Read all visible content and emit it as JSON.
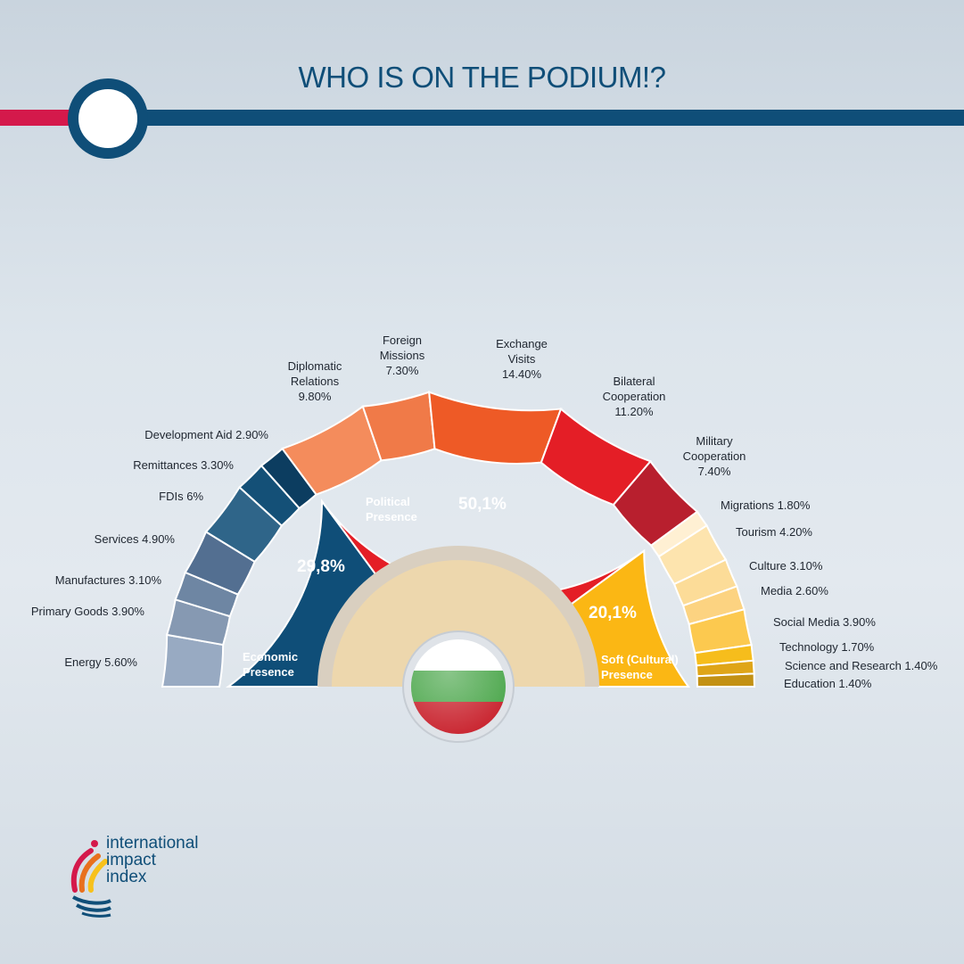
{
  "title": "WHO IS ON THE PODIUM!?",
  "logo": {
    "lines": [
      "international",
      "impact",
      "index"
    ]
  },
  "center_flag": {
    "name": "Bulgaria",
    "colors": [
      "#ffffff",
      "#4aa64a",
      "#c8202b"
    ]
  },
  "chart_data": {
    "type": "pie",
    "subtype": "semicircle-sunburst",
    "inner": [
      {
        "name_lines": [
          "Economic",
          "Presence"
        ],
        "value_label": "29,8%",
        "value": 29.8,
        "color": "#0f4e78"
      },
      {
        "name_lines": [
          "Political",
          "Presence"
        ],
        "value_label": "50,1%",
        "value": 50.1,
        "color": "#e41e26"
      },
      {
        "name_lines": [
          "Soft (Cultural)",
          "Presence"
        ],
        "value_label": "20,1%",
        "value": 20.1,
        "color": "#fbb714"
      }
    ],
    "outer": [
      {
        "label_lines": [
          "Energy 5.60%"
        ],
        "value": 5.6,
        "group": "Economic",
        "color": "#98aac2"
      },
      {
        "label_lines": [
          "Primary Goods 3.90%"
        ],
        "value": 3.9,
        "group": "Economic",
        "color": "#8699b2"
      },
      {
        "label_lines": [
          "Manufactures 3.10%"
        ],
        "value": 3.1,
        "group": "Economic",
        "color": "#6e86a3"
      },
      {
        "label_lines": [
          "Services 4.90%"
        ],
        "value": 4.9,
        "group": "Economic",
        "color": "#536f91"
      },
      {
        "label_lines": [
          "FDIs 6%"
        ],
        "value": 6.0,
        "group": "Economic",
        "color": "#2f6589"
      },
      {
        "label_lines": [
          "Remittances 3.30%"
        ],
        "value": 3.3,
        "group": "Economic",
        "color": "#145077"
      },
      {
        "label_lines": [
          "Development Aid 2.90%"
        ],
        "value": 2.9,
        "group": "Economic",
        "color": "#0c3d60"
      },
      {
        "label_lines": [
          "Diplomatic",
          "Relations",
          "9.80%"
        ],
        "value": 9.8,
        "group": "Political",
        "color": "#f48c5c"
      },
      {
        "label_lines": [
          "Foreign",
          "Missions",
          "7.30%"
        ],
        "value": 7.3,
        "group": "Political",
        "color": "#f07a48"
      },
      {
        "label_lines": [
          "Exchange",
          "Visits",
          "14.40%"
        ],
        "value": 14.4,
        "group": "Political",
        "color": "#ee5a26"
      },
      {
        "label_lines": [
          "Bilateral",
          "Cooperation",
          "11.20%"
        ],
        "value": 11.2,
        "group": "Political",
        "color": "#e41e26"
      },
      {
        "label_lines": [
          "Military",
          "Cooperation",
          "7.40%"
        ],
        "value": 7.4,
        "group": "Political",
        "color": "#b81f2e"
      },
      {
        "label_lines": [
          "Migrations 1.80%"
        ],
        "value": 1.8,
        "group": "Soft",
        "color": "#fff0d3"
      },
      {
        "label_lines": [
          "Tourism 4.20%"
        ],
        "value": 4.2,
        "group": "Soft",
        "color": "#fde4ae"
      },
      {
        "label_lines": [
          "Culture 3.10%"
        ],
        "value": 3.1,
        "group": "Soft",
        "color": "#fcdc98"
      },
      {
        "label_lines": [
          "Media 2.60%"
        ],
        "value": 2.6,
        "group": "Soft",
        "color": "#fcd381"
      },
      {
        "label_lines": [
          "Social Media 3.90%"
        ],
        "value": 3.9,
        "group": "Soft",
        "color": "#fcc94f"
      },
      {
        "label_lines": [
          "Technology 1.70%"
        ],
        "value": 1.7,
        "group": "Soft",
        "color": "#f6bd1c"
      },
      {
        "label_lines": [
          "Science and Research 1.40%"
        ],
        "value": 1.4,
        "group": "Soft",
        "color": "#dfa518"
      },
      {
        "label_lines": [
          "Education 1.40%"
        ],
        "value": 1.4,
        "group": "Soft",
        "color": "#c39114"
      }
    ]
  }
}
